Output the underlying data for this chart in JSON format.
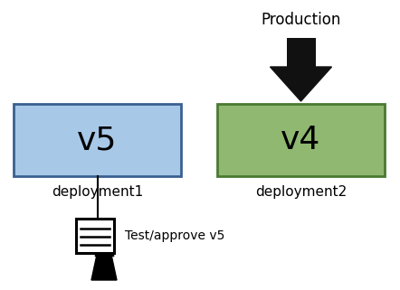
{
  "fig_width": 4.42,
  "fig_height": 3.21,
  "dpi": 100,
  "box1_label": "v5",
  "box1_sublabel": "deployment1",
  "box1_color": "#a8c8e8",
  "box1_edgecolor": "#3a6090",
  "box2_label": "v4",
  "box2_sublabel": "deployment2",
  "box2_color": "#90b870",
  "box2_edgecolor": "#4a7a30",
  "production_label": "Production",
  "arrow_color": "#111111",
  "test_label": "Test/approve v5",
  "background_color": "#ffffff"
}
